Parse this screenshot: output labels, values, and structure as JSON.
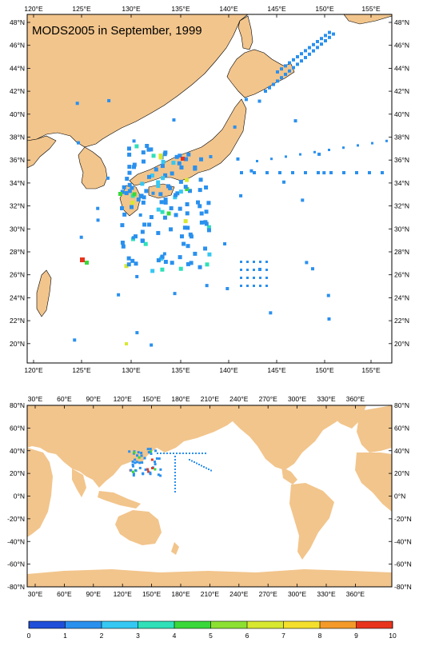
{
  "map_title": "MODS2005 in September, 1999",
  "colors": {
    "land": "#f2c58c",
    "ocean": "#ffffff",
    "frame": "#000000",
    "colorbar": [
      "#1f4ed8",
      "#2a90ee",
      "#35c8f2",
      "#2fe0b8",
      "#3ad83a",
      "#8ce032",
      "#d8e830",
      "#f4e02c",
      "#f49a2a",
      "#e8341c"
    ]
  },
  "regional_map": {
    "lon_ticks": [
      "120°E",
      "125°E",
      "130°E",
      "135°E",
      "140°E",
      "145°E",
      "150°E",
      "155°E"
    ],
    "lat_ticks": [
      "48°N",
      "46°N",
      "44°N",
      "42°N",
      "40°N",
      "38°N",
      "36°N",
      "34°N",
      "32°N",
      "30°N",
      "28°N",
      "26°N",
      "24°N",
      "22°N",
      "20°N"
    ]
  },
  "global_map": {
    "lon_ticks": [
      "30°E",
      "60°E",
      "90°E",
      "120°E",
      "150°E",
      "180°E",
      "210°E",
      "240°E",
      "270°E",
      "300°E",
      "330°E",
      "360°E"
    ],
    "lat_ticks": [
      "80°N",
      "60°N",
      "40°N",
      "20°N",
      "0°N",
      "-20°N",
      "-40°N",
      "-60°N",
      "-80°N"
    ]
  },
  "colorbar": {
    "ticks": [
      "0",
      "1",
      "2",
      "3",
      "4",
      "5",
      "6",
      "7",
      "8",
      "9",
      "10"
    ]
  }
}
